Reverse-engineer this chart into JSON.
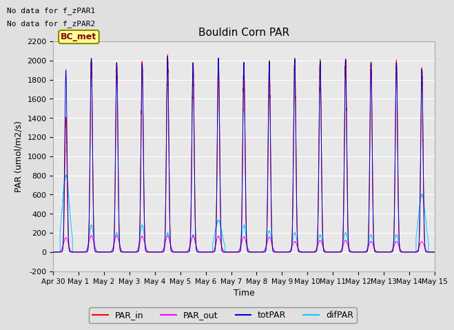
{
  "title": "Bouldin Corn PAR",
  "ylabel": "PAR (umol/m2/s)",
  "xlabel": "Time",
  "ylim": [
    -200,
    2200
  ],
  "annotation_lines": [
    "No data for f_zPAR1",
    "No data for f_zPAR2"
  ],
  "legend_label": "BC_met",
  "legend_entries": [
    "PAR_in",
    "PAR_out",
    "totPAR",
    "difPAR"
  ],
  "legend_colors": [
    "#ff0000",
    "#ff00ff",
    "#0000cc",
    "#00ccff"
  ],
  "yticks": [
    -200,
    0,
    200,
    400,
    600,
    800,
    1000,
    1200,
    1400,
    1600,
    1800,
    2000,
    2200
  ],
  "background_color": "#e0e0e0",
  "plot_bg_color": "#e8e8e8",
  "n_days": 15,
  "day_labels": [
    "Apr 30",
    "May 1",
    "May 2",
    "May 3",
    "May 4",
    "May 5",
    "May 6",
    "May 7",
    "May 8",
    "May 9",
    "May 10",
    "May 11",
    "May 12",
    "May 13",
    "May 14",
    "May 15"
  ],
  "par_in_peaks": [
    1400,
    2000,
    1950,
    1960,
    2030,
    1960,
    2000,
    1960,
    1960,
    2000,
    1980,
    2000,
    1970,
    1970,
    1900,
    1920
  ],
  "tot_peaks": [
    1900,
    2020,
    1970,
    1960,
    2040,
    1970,
    2020,
    1975,
    1975,
    2005,
    1985,
    2005,
    1975,
    1975,
    1905,
    1925
  ],
  "dif_peaks": [
    800,
    280,
    200,
    280,
    200,
    180,
    330,
    280,
    220,
    200,
    180,
    200,
    180,
    180,
    600,
    600
  ],
  "out_peaks": [
    150,
    170,
    170,
    165,
    170,
    165,
    165,
    160,
    155,
    110,
    120,
    120,
    110,
    110,
    110,
    110
  ],
  "dif_wide_days": [
    0,
    6,
    14,
    15
  ],
  "pts_per_day": 1440,
  "figsize": [
    6.4,
    4.8
  ],
  "dpi": 100
}
